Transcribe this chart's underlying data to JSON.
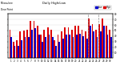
{
  "title": "Daily High/Low",
  "left_label1": "Milwaukee",
  "left_label2": "Dew Point",
  "days": [
    1,
    2,
    3,
    4,
    5,
    6,
    7,
    8,
    9,
    10,
    11,
    12,
    13,
    14,
    15,
    16,
    17,
    18,
    19,
    20,
    21,
    22,
    23,
    24,
    25,
    26,
    27,
    28,
    29,
    30
  ],
  "high": [
    52,
    30,
    32,
    48,
    50,
    52,
    68,
    68,
    58,
    42,
    52,
    56,
    52,
    32,
    42,
    48,
    56,
    56,
    52,
    58,
    58,
    52,
    48,
    72,
    62,
    52,
    62,
    72,
    58,
    52
  ],
  "low": [
    38,
    22,
    22,
    32,
    38,
    38,
    52,
    55,
    42,
    30,
    38,
    42,
    38,
    22,
    30,
    35,
    42,
    42,
    38,
    42,
    44,
    40,
    35,
    58,
    48,
    38,
    48,
    58,
    42,
    38
  ],
  "high_color": "#dd0000",
  "low_color": "#0000cc",
  "bg_color": "#ffffff",
  "ylim": [
    0,
    80
  ],
  "yticks": [
    10,
    20,
    30,
    40,
    50,
    60,
    70,
    80
  ],
  "dashed_lines_after_idx": [
    23,
    26
  ],
  "bar_width": 0.42,
  "legend_high": "High",
  "legend_low": "Low"
}
